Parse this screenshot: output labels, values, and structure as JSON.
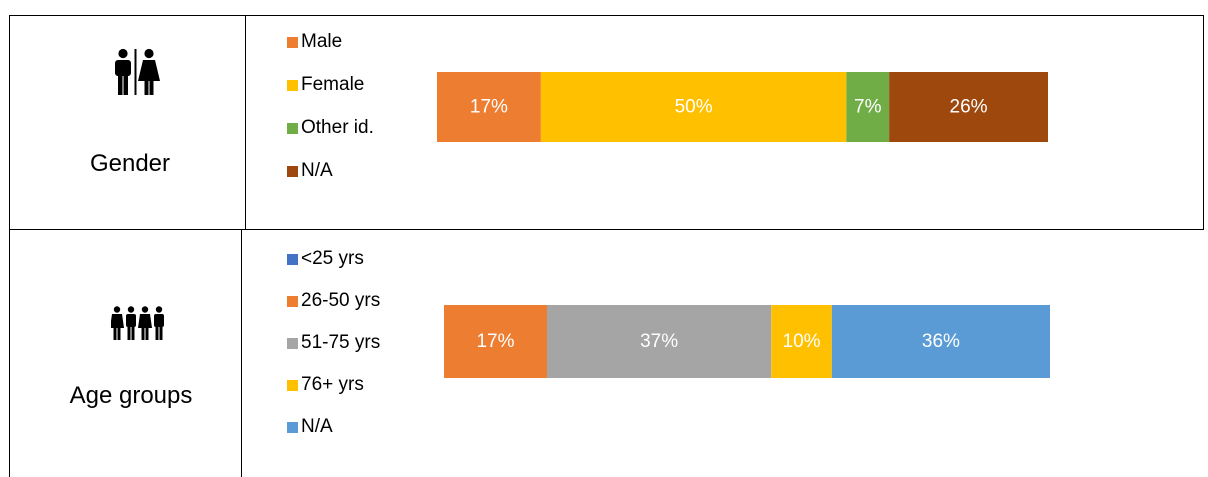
{
  "rows": [
    {
      "label": "Gender",
      "icon": "restroom-icon",
      "legend": [
        {
          "label": "Male",
          "color": "#ED7D31"
        },
        {
          "label": "Female",
          "color": "#FFC000"
        },
        {
          "label": "Other id.",
          "color": "#70AD47"
        },
        {
          "label": "N/A",
          "color": "#9E480E"
        }
      ]
    },
    {
      "label": "Age groups",
      "icon": "people-group-icon",
      "legend": [
        {
          "label": "<25 yrs",
          "color": "#4472C4"
        },
        {
          "label": "26-50 yrs",
          "color": "#ED7D31"
        },
        {
          "label": "51-75 yrs",
          "color": "#A5A5A5"
        },
        {
          "label": "76+ yrs",
          "color": "#FFC000"
        },
        {
          "label": "N/A",
          "color": "#5B9BD5"
        }
      ]
    }
  ],
  "chart_data": [
    {
      "type": "bar",
      "orientation": "horizontal-stacked-100",
      "categories": [
        "Gender"
      ],
      "series": [
        {
          "name": "Male",
          "values": [
            17
          ],
          "color": "#ED7D31",
          "label": "17%"
        },
        {
          "name": "Female",
          "values": [
            50
          ],
          "color": "#FFC000",
          "label": "50%"
        },
        {
          "name": "Other id.",
          "values": [
            7
          ],
          "color": "#70AD47",
          "label": "7%"
        },
        {
          "name": "N/A",
          "values": [
            26
          ],
          "color": "#9E480E",
          "label": "26%"
        }
      ],
      "legend_position": "left"
    },
    {
      "type": "bar",
      "orientation": "horizontal-stacked-100",
      "categories": [
        "Age groups"
      ],
      "series": [
        {
          "name": "<25 yrs",
          "values": [
            0
          ],
          "color": "#4472C4",
          "label": ""
        },
        {
          "name": "26-50 yrs",
          "values": [
            17
          ],
          "color": "#ED7D31",
          "label": "17%"
        },
        {
          "name": "51-75 yrs",
          "values": [
            37
          ],
          "color": "#A5A5A5",
          "label": "37%"
        },
        {
          "name": "76+ yrs",
          "values": [
            10
          ],
          "color": "#FFC000",
          "label": "10%"
        },
        {
          "name": "N/A",
          "values": [
            36
          ],
          "color": "#5B9BD5",
          "label": "36%"
        }
      ],
      "legend_position": "left"
    }
  ]
}
